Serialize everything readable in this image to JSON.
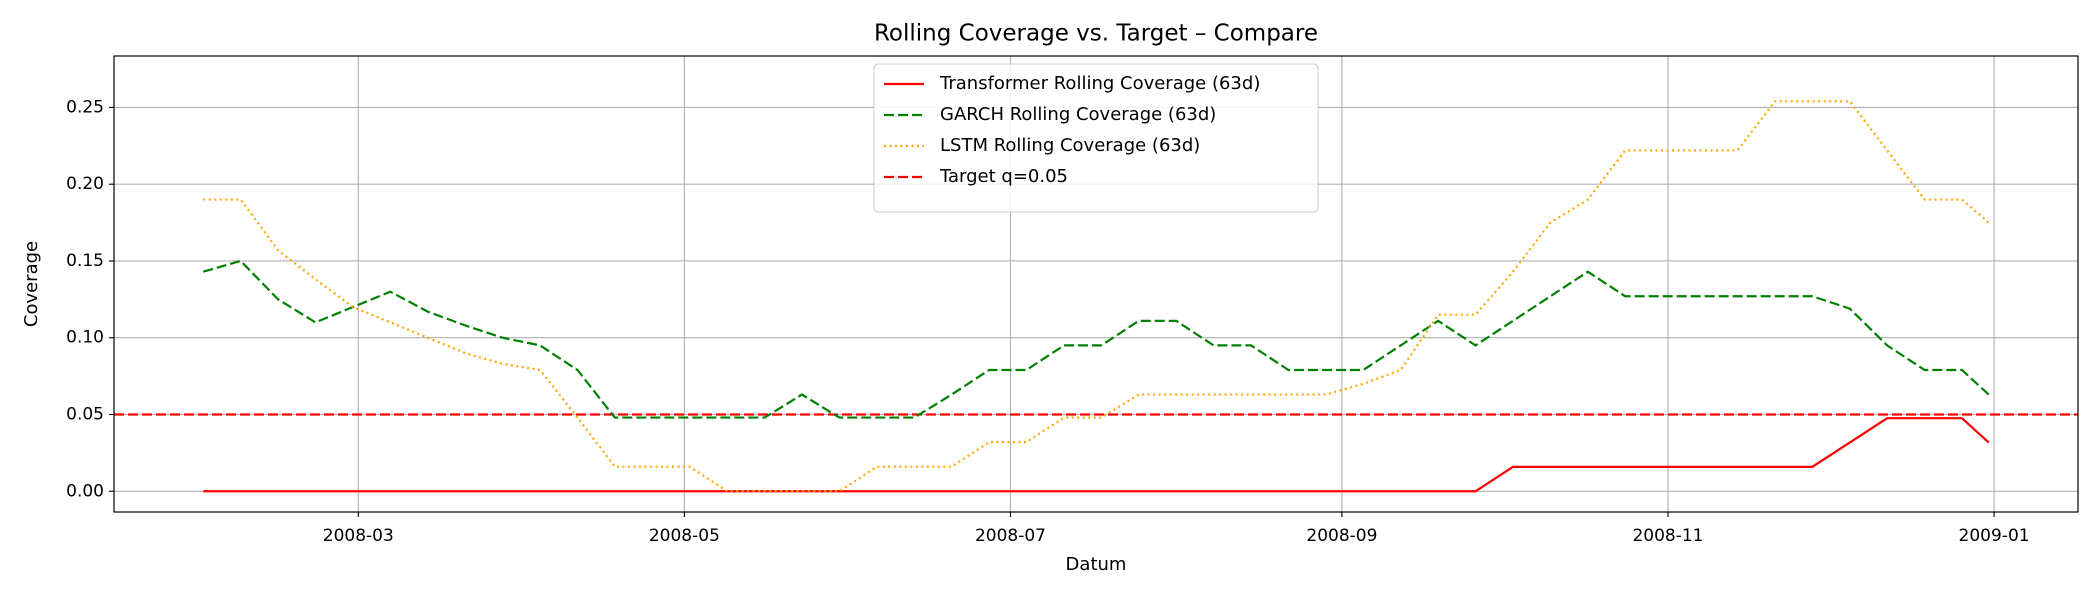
{
  "chart_data": {
    "type": "line",
    "title": "Rolling Coverage vs. Target – Compare",
    "x_label": "Datum",
    "y_label": "Coverage",
    "x": [
      31,
      38,
      45,
      52,
      59,
      66,
      73,
      80,
      87,
      94,
      101,
      108,
      115,
      122,
      129,
      136,
      143,
      150,
      157,
      164,
      171,
      178,
      185,
      192,
      199,
      206,
      213,
      220,
      227,
      234,
      241,
      248,
      255,
      262,
      269,
      276,
      283,
      290,
      297,
      304,
      311,
      318,
      325,
      332,
      339,
      346,
      353,
      360,
      365
    ],
    "series": [
      {
        "name": "Transformer Rolling Coverage (63d)",
        "color": "#ff0000",
        "style": "solid",
        "values": [
          0,
          0,
          0,
          0,
          0,
          0,
          0,
          0,
          0,
          0,
          0,
          0,
          0,
          0,
          0,
          0,
          0,
          0,
          0,
          0,
          0,
          0,
          0,
          0,
          0,
          0,
          0,
          0,
          0,
          0,
          0,
          0,
          0,
          0,
          0,
          0.0159,
          0.0159,
          0.0159,
          0.0159,
          0.0159,
          0.0159,
          0.0159,
          0.0159,
          0.0159,
          0.0317,
          0.0476,
          0.0476,
          0.0476,
          0.0317
        ]
      },
      {
        "name": "GARCH Rolling Coverage (63d)",
        "color": "#008000",
        "style": "dashed",
        "values": [
          0.143,
          0.15,
          0.125,
          0.11,
          0.12,
          0.13,
          0.117,
          0.108,
          0.1,
          0.095,
          0.079,
          0.048,
          0.048,
          0.048,
          0.048,
          0.048,
          0.063,
          0.048,
          0.048,
          0.048,
          0.063,
          0.079,
          0.079,
          0.095,
          0.095,
          0.111,
          0.111,
          0.095,
          0.095,
          0.079,
          0.079,
          0.079,
          0.095,
          0.111,
          0.095,
          0.111,
          0.127,
          0.143,
          0.127,
          0.127,
          0.127,
          0.127,
          0.127,
          0.127,
          0.119,
          0.095,
          0.079,
          0.079,
          0.063
        ]
      },
      {
        "name": "LSTM Rolling Coverage (63d)",
        "color": "#ffa500",
        "style": "dotted",
        "values": [
          0.19,
          0.19,
          0.157,
          0.138,
          0.12,
          0.11,
          0.1,
          0.09,
          0.083,
          0.079,
          0.048,
          0.016,
          0.016,
          0.016,
          0,
          0,
          0,
          0,
          0.016,
          0.016,
          0.016,
          0.032,
          0.032,
          0.048,
          0.048,
          0.063,
          0.063,
          0.063,
          0.063,
          0.063,
          0.063,
          0.07,
          0.079,
          0.115,
          0.115,
          0.143,
          0.175,
          0.19,
          0.222,
          0.222,
          0.222,
          0.222,
          0.254,
          0.254,
          0.254,
          0.222,
          0.19,
          0.19,
          0.175
        ]
      }
    ],
    "hlines": [
      {
        "name": "Target q=0.05",
        "color": "#ff0000",
        "style": "dashed",
        "value": 0.05
      }
    ],
    "xlim": [
      14.3,
      381.7
    ],
    "ylim": [
      -0.0135,
      0.2835
    ],
    "xticks": [
      {
        "value": 60,
        "label": "2008-03"
      },
      {
        "value": 121,
        "label": "2008-05"
      },
      {
        "value": 182,
        "label": "2008-07"
      },
      {
        "value": 244,
        "label": "2008-09"
      },
      {
        "value": 305,
        "label": "2008-11"
      },
      {
        "value": 366,
        "label": "2009-01"
      }
    ],
    "yticks": [
      {
        "value": 0,
        "label": "0.00"
      },
      {
        "value": 0.05,
        "label": "0.05"
      },
      {
        "value": 0.1,
        "label": "0.10"
      },
      {
        "value": 0.15,
        "label": "0.15"
      },
      {
        "value": 0.2,
        "label": "0.20"
      },
      {
        "value": 0.25,
        "label": "0.25"
      }
    ],
    "grid": true,
    "legend": "upper center"
  }
}
